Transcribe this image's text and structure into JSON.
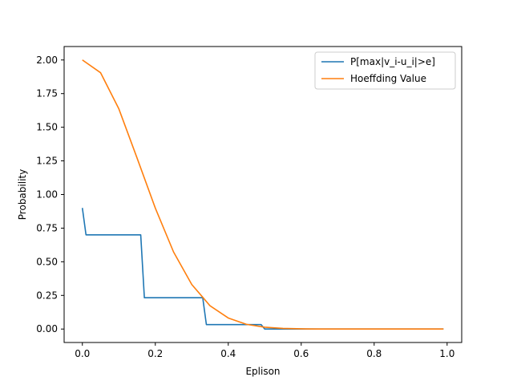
{
  "chart_data": {
    "type": "line",
    "title": "",
    "xlabel": "Eplison",
    "ylabel": "Probability",
    "xlim": [
      -0.05,
      1.04
    ],
    "ylim": [
      -0.1,
      2.1
    ],
    "xticks": [
      0.0,
      0.2,
      0.4,
      0.6,
      0.8,
      1.0
    ],
    "xtick_labels": [
      "0.0",
      "0.2",
      "0.4",
      "0.6",
      "0.8",
      "1.0"
    ],
    "yticks": [
      0.0,
      0.25,
      0.5,
      0.75,
      1.0,
      1.25,
      1.5,
      1.75,
      2.0
    ],
    "ytick_labels": [
      "0.00",
      "0.25",
      "0.50",
      "0.75",
      "1.00",
      "1.25",
      "1.50",
      "1.75",
      "2.00"
    ],
    "grid": false,
    "legend_position": "top-right",
    "series": [
      {
        "name": "P[max|v_i-u_i|>e]",
        "color": "#1f77b4",
        "x": [
          0.0,
          0.01,
          0.16,
          0.17,
          0.33,
          0.34,
          0.49,
          0.5,
          0.99
        ],
        "y": [
          0.9,
          0.7,
          0.7,
          0.233,
          0.233,
          0.033,
          0.033,
          0.0,
          0.0
        ]
      },
      {
        "name": "Hoeffding Value",
        "color": "#ff7f0e",
        "x": [
          0.0,
          0.05,
          0.1,
          0.15,
          0.2,
          0.25,
          0.3,
          0.35,
          0.4,
          0.45,
          0.5,
          0.55,
          0.6,
          0.65,
          0.7,
          0.75,
          0.8,
          0.85,
          0.9,
          0.95,
          0.99
        ],
        "y": [
          2.0,
          1.905,
          1.637,
          1.271,
          0.899,
          0.573,
          0.331,
          0.173,
          0.082,
          0.035,
          0.0135,
          0.0047,
          0.0015,
          0.0004,
          0.0001,
          0.0,
          0.0,
          0.0,
          0.0,
          0.0,
          0.0
        ]
      }
    ]
  }
}
